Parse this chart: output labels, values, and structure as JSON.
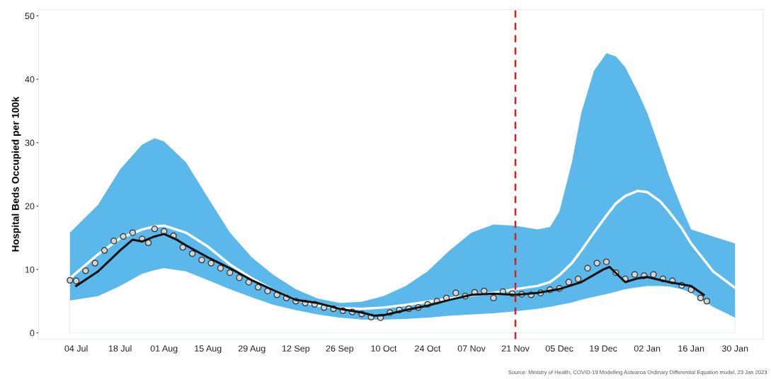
{
  "chart_data": {
    "type": "line",
    "ylabel": "Hospital Beds Occupied per 100k",
    "xlim": [
      "2022-06-22",
      "2023-02-08"
    ],
    "xticks": [
      {
        "value": "2022-07-04",
        "label": "04 Jul"
      },
      {
        "value": "2022-07-18",
        "label": "18 Jul"
      },
      {
        "value": "2022-08-01",
        "label": "01 Aug"
      },
      {
        "value": "2022-08-15",
        "label": "15 Aug"
      },
      {
        "value": "2022-08-29",
        "label": "29 Aug"
      },
      {
        "value": "2022-09-12",
        "label": "12 Sep"
      },
      {
        "value": "2022-09-26",
        "label": "26 Sep"
      },
      {
        "value": "2022-10-10",
        "label": "10 Oct"
      },
      {
        "value": "2022-10-24",
        "label": "24 Oct"
      },
      {
        "value": "2022-11-07",
        "label": "07 Nov"
      },
      {
        "value": "2022-11-21",
        "label": "21 Nov"
      },
      {
        "value": "2022-12-05",
        "label": "05 Dec"
      },
      {
        "value": "2022-12-19",
        "label": "19 Dec"
      },
      {
        "value": "2023-01-02",
        "label": "02 Jan"
      },
      {
        "value": "2023-01-16",
        "label": "16 Jan"
      },
      {
        "value": "2023-01-30",
        "label": "30 Jan"
      }
    ],
    "ylim": [
      -1,
      51
    ],
    "yticks": [
      0,
      10,
      20,
      30,
      40,
      50
    ],
    "grid": false,
    "legend": false,
    "series": [
      {
        "type": "area",
        "color": "#5ab9ea",
        "x": [
          "2022-07-02",
          "2022-07-11",
          "2022-07-18",
          "2022-07-25",
          "2022-07-29",
          "2022-08-01",
          "2022-08-08",
          "2022-08-15",
          "2022-08-22",
          "2022-08-29",
          "2022-09-05",
          "2022-09-12",
          "2022-09-19",
          "2022-09-26",
          "2022-10-03",
          "2022-10-10",
          "2022-10-17",
          "2022-10-24",
          "2022-10-31",
          "2022-11-07",
          "2022-11-14",
          "2022-11-21",
          "2022-11-28",
          "2022-12-02",
          "2022-12-05",
          "2022-12-09",
          "2022-12-12",
          "2022-12-16",
          "2022-12-20",
          "2022-12-23",
          "2022-12-26",
          "2022-12-30",
          "2023-01-02",
          "2023-01-06",
          "2023-01-09",
          "2023-01-13",
          "2023-01-16",
          "2023-01-23",
          "2023-01-30"
        ],
        "values": [
          15.8,
          20.2,
          25.8,
          29.7,
          30.7,
          30.2,
          26.9,
          21.3,
          15.8,
          11.9,
          9.1,
          6.9,
          5.4,
          4.7,
          4.9,
          5.8,
          7.4,
          9.7,
          13,
          15.8,
          17.1,
          16.9,
          16.3,
          16.7,
          19.1,
          26.9,
          34.7,
          41.3,
          44.1,
          43.6,
          41.9,
          38,
          34.7,
          29.1,
          24.7,
          19.7,
          16.3,
          15.2,
          14.1
        ]
      },
      {
        "type": "area",
        "color": "#ffffff",
        "x": [
          "2022-07-02",
          "2022-07-11",
          "2022-07-18",
          "2022-07-25",
          "2022-07-29",
          "2022-08-01",
          "2022-08-08",
          "2022-08-15",
          "2022-08-22",
          "2022-08-29",
          "2022-09-05",
          "2022-09-12",
          "2022-09-19",
          "2022-09-26",
          "2022-10-03",
          "2022-10-10",
          "2022-10-17",
          "2022-10-24",
          "2022-10-31",
          "2022-11-07",
          "2022-11-14",
          "2022-11-21",
          "2022-11-28",
          "2022-12-02",
          "2022-12-05",
          "2022-12-09",
          "2022-12-12",
          "2022-12-16",
          "2022-12-20",
          "2022-12-23",
          "2022-12-26",
          "2022-12-30",
          "2023-01-02",
          "2023-01-06",
          "2023-01-09",
          "2023-01-13",
          "2023-01-16",
          "2023-01-23",
          "2023-01-30"
        ],
        "values": [
          5.1,
          5.8,
          7.4,
          9.3,
          9.9,
          10.2,
          9.7,
          8.3,
          6.9,
          5.6,
          4.4,
          3.6,
          2.9,
          2.4,
          2.1,
          2.1,
          2.2,
          2.4,
          2.7,
          2.9,
          3.1,
          3.4,
          3.8,
          4.1,
          4.4,
          4.8,
          5.2,
          5.7,
          6.1,
          6.5,
          6.9,
          7.2,
          7.4,
          7.4,
          7.3,
          6.9,
          6.3,
          4.1,
          2.4
        ]
      },
      {
        "type": "line",
        "color": "#ffffff",
        "x": [
          "2022-07-02",
          "2022-07-11",
          "2022-07-18",
          "2022-07-25",
          "2022-07-29",
          "2022-08-01",
          "2022-08-08",
          "2022-08-15",
          "2022-08-22",
          "2022-08-29",
          "2022-09-05",
          "2022-09-12",
          "2022-09-19",
          "2022-09-26",
          "2022-10-03",
          "2022-10-10",
          "2022-10-17",
          "2022-10-24",
          "2022-10-31",
          "2022-11-07",
          "2022-11-14",
          "2022-11-21",
          "2022-11-28",
          "2022-12-02",
          "2022-12-05",
          "2022-12-09",
          "2022-12-12",
          "2022-12-16",
          "2022-12-20",
          "2022-12-23",
          "2022-12-26",
          "2022-12-30",
          "2023-01-02",
          "2023-01-06",
          "2023-01-09",
          "2023-01-13",
          "2023-01-16",
          "2023-01-23",
          "2023-01-30"
        ],
        "values": [
          8.6,
          12.4,
          14.9,
          16.3,
          16.8,
          16.9,
          15.8,
          13.6,
          10.8,
          8.6,
          6.7,
          5.2,
          4.3,
          3.9,
          3.8,
          4.0,
          4.4,
          4.9,
          5.4,
          5.9,
          6.3,
          6.9,
          7.4,
          8.0,
          9.1,
          11,
          13,
          15.8,
          18.5,
          20.4,
          21.6,
          22.4,
          22.2,
          20.8,
          19.1,
          16.5,
          14.1,
          9.7,
          7.1
        ]
      },
      {
        "type": "scatter",
        "color": "#d4d4d4",
        "marker": "circle",
        "x": [
          "2022-07-02",
          "2022-07-04",
          "2022-07-07",
          "2022-07-10",
          "2022-07-13",
          "2022-07-16",
          "2022-07-19",
          "2022-07-22",
          "2022-07-25",
          "2022-07-27",
          "2022-07-29",
          "2022-08-01",
          "2022-08-04",
          "2022-08-07",
          "2022-08-10",
          "2022-08-13",
          "2022-08-16",
          "2022-08-19",
          "2022-08-22",
          "2022-08-25",
          "2022-08-28",
          "2022-08-31",
          "2022-09-03",
          "2022-09-06",
          "2022-09-09",
          "2022-09-12",
          "2022-09-15",
          "2022-09-18",
          "2022-09-21",
          "2022-09-24",
          "2022-09-27",
          "2022-09-30",
          "2022-10-03",
          "2022-10-06",
          "2022-10-09",
          "2022-10-12",
          "2022-10-15",
          "2022-10-18",
          "2022-10-21",
          "2022-10-24",
          "2022-10-27",
          "2022-10-30",
          "2022-11-02",
          "2022-11-05",
          "2022-11-08",
          "2022-11-11",
          "2022-11-14",
          "2022-11-17",
          "2022-11-20",
          "2022-11-23",
          "2022-11-26",
          "2022-11-29",
          "2022-12-02",
          "2022-12-05",
          "2022-12-08",
          "2022-12-11",
          "2022-12-14",
          "2022-12-17",
          "2022-12-20",
          "2022-12-23",
          "2022-12-26",
          "2022-12-29",
          "2023-01-01",
          "2023-01-04",
          "2023-01-07",
          "2023-01-10",
          "2023-01-13",
          "2023-01-16",
          "2023-01-19",
          "2023-01-21"
        ],
        "values": [
          8.3,
          8.2,
          9.8,
          11,
          13,
          14.5,
          15.2,
          15.8,
          14.8,
          14.2,
          16.4,
          16,
          15.3,
          13.5,
          12.5,
          11.5,
          11,
          10.2,
          9.5,
          8.7,
          8,
          7.2,
          6.6,
          6,
          5.5,
          5,
          4.7,
          4.5,
          4,
          3.8,
          3.5,
          3.3,
          3,
          2.5,
          2.4,
          3.2,
          3.6,
          3.8,
          4,
          4.5,
          5,
          5.5,
          6.3,
          5.8,
          6.4,
          6.6,
          5.5,
          6.5,
          6.2,
          6.1,
          6.0,
          6.3,
          6.8,
          7.0,
          8,
          8.5,
          10.2,
          11,
          11.2,
          9.5,
          8.5,
          9.2,
          9,
          9.2,
          8.5,
          8.2,
          7.5,
          6.8,
          5.5,
          5
        ]
      },
      {
        "color": "#111111",
        "x": [
          "2022-07-04",
          "2022-07-11",
          "2022-07-18",
          "2022-07-22",
          "2022-07-25",
          "2022-07-29",
          "2022-08-01",
          "2022-08-05",
          "2022-08-08",
          "2022-08-15",
          "2022-08-22",
          "2022-08-29",
          "2022-09-05",
          "2022-09-12",
          "2022-09-19",
          "2022-09-26",
          "2022-10-03",
          "2022-10-07",
          "2022-10-10",
          "2022-10-17",
          "2022-10-24",
          "2022-10-31",
          "2022-11-07",
          "2022-11-14",
          "2022-11-21",
          "2022-11-28",
          "2022-12-05",
          "2022-12-12",
          "2022-12-19",
          "2022-12-21",
          "2022-12-26",
          "2022-12-30",
          "2023-01-02",
          "2023-01-09",
          "2023-01-16",
          "2023-01-20"
        ],
        "values": [
          7.4,
          9.7,
          13,
          14.7,
          14.4,
          15.2,
          15.6,
          14.7,
          13.8,
          11.9,
          10.2,
          8.3,
          6.7,
          5.2,
          4.7,
          3.8,
          3.2,
          2.7,
          2.8,
          3.6,
          4.3,
          5.2,
          6.0,
          6.2,
          6.0,
          6.3,
          6.9,
          8.0,
          10,
          10.4,
          8,
          8.6,
          8.8,
          8,
          7.4,
          6.0
        ]
      }
    ],
    "ref_lines": [
      {
        "axis": "x",
        "value": "2022-11-21",
        "color": "#d42020",
        "line_style": "dashed"
      }
    ],
    "annotations": [
      "Source: Ministry of Health, COVID-19 Modelling Aotearoa Ordinary Differential Equation model, 23 Jan 2023"
    ]
  }
}
